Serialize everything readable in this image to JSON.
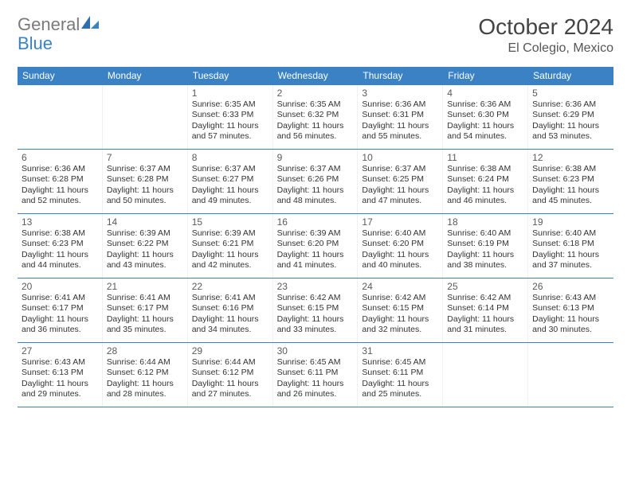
{
  "brand": {
    "part1": "General",
    "part2": "Blue"
  },
  "header": {
    "month_title": "October 2024",
    "location": "El Colegio, Mexico"
  },
  "colors": {
    "header_bg": "#3a82c4",
    "header_text": "#ffffff",
    "page_bg": "#ffffff",
    "text": "#333333",
    "logo_gray": "#7a7a7a",
    "logo_blue": "#3a82c4",
    "week_border": "#3a82c4"
  },
  "day_names": [
    "Sunday",
    "Monday",
    "Tuesday",
    "Wednesday",
    "Thursday",
    "Friday",
    "Saturday"
  ],
  "weeks": [
    [
      null,
      null,
      {
        "n": "1",
        "sr": "6:35 AM",
        "ss": "6:33 PM",
        "dl": "11 hours and 57 minutes."
      },
      {
        "n": "2",
        "sr": "6:35 AM",
        "ss": "6:32 PM",
        "dl": "11 hours and 56 minutes."
      },
      {
        "n": "3",
        "sr": "6:36 AM",
        "ss": "6:31 PM",
        "dl": "11 hours and 55 minutes."
      },
      {
        "n": "4",
        "sr": "6:36 AM",
        "ss": "6:30 PM",
        "dl": "11 hours and 54 minutes."
      },
      {
        "n": "5",
        "sr": "6:36 AM",
        "ss": "6:29 PM",
        "dl": "11 hours and 53 minutes."
      }
    ],
    [
      {
        "n": "6",
        "sr": "6:36 AM",
        "ss": "6:28 PM",
        "dl": "11 hours and 52 minutes."
      },
      {
        "n": "7",
        "sr": "6:37 AM",
        "ss": "6:28 PM",
        "dl": "11 hours and 50 minutes."
      },
      {
        "n": "8",
        "sr": "6:37 AM",
        "ss": "6:27 PM",
        "dl": "11 hours and 49 minutes."
      },
      {
        "n": "9",
        "sr": "6:37 AM",
        "ss": "6:26 PM",
        "dl": "11 hours and 48 minutes."
      },
      {
        "n": "10",
        "sr": "6:37 AM",
        "ss": "6:25 PM",
        "dl": "11 hours and 47 minutes."
      },
      {
        "n": "11",
        "sr": "6:38 AM",
        "ss": "6:24 PM",
        "dl": "11 hours and 46 minutes."
      },
      {
        "n": "12",
        "sr": "6:38 AM",
        "ss": "6:23 PM",
        "dl": "11 hours and 45 minutes."
      }
    ],
    [
      {
        "n": "13",
        "sr": "6:38 AM",
        "ss": "6:23 PM",
        "dl": "11 hours and 44 minutes."
      },
      {
        "n": "14",
        "sr": "6:39 AM",
        "ss": "6:22 PM",
        "dl": "11 hours and 43 minutes."
      },
      {
        "n": "15",
        "sr": "6:39 AM",
        "ss": "6:21 PM",
        "dl": "11 hours and 42 minutes."
      },
      {
        "n": "16",
        "sr": "6:39 AM",
        "ss": "6:20 PM",
        "dl": "11 hours and 41 minutes."
      },
      {
        "n": "17",
        "sr": "6:40 AM",
        "ss": "6:20 PM",
        "dl": "11 hours and 40 minutes."
      },
      {
        "n": "18",
        "sr": "6:40 AM",
        "ss": "6:19 PM",
        "dl": "11 hours and 38 minutes."
      },
      {
        "n": "19",
        "sr": "6:40 AM",
        "ss": "6:18 PM",
        "dl": "11 hours and 37 minutes."
      }
    ],
    [
      {
        "n": "20",
        "sr": "6:41 AM",
        "ss": "6:17 PM",
        "dl": "11 hours and 36 minutes."
      },
      {
        "n": "21",
        "sr": "6:41 AM",
        "ss": "6:17 PM",
        "dl": "11 hours and 35 minutes."
      },
      {
        "n": "22",
        "sr": "6:41 AM",
        "ss": "6:16 PM",
        "dl": "11 hours and 34 minutes."
      },
      {
        "n": "23",
        "sr": "6:42 AM",
        "ss": "6:15 PM",
        "dl": "11 hours and 33 minutes."
      },
      {
        "n": "24",
        "sr": "6:42 AM",
        "ss": "6:15 PM",
        "dl": "11 hours and 32 minutes."
      },
      {
        "n": "25",
        "sr": "6:42 AM",
        "ss": "6:14 PM",
        "dl": "11 hours and 31 minutes."
      },
      {
        "n": "26",
        "sr": "6:43 AM",
        "ss": "6:13 PM",
        "dl": "11 hours and 30 minutes."
      }
    ],
    [
      {
        "n": "27",
        "sr": "6:43 AM",
        "ss": "6:13 PM",
        "dl": "11 hours and 29 minutes."
      },
      {
        "n": "28",
        "sr": "6:44 AM",
        "ss": "6:12 PM",
        "dl": "11 hours and 28 minutes."
      },
      {
        "n": "29",
        "sr": "6:44 AM",
        "ss": "6:12 PM",
        "dl": "11 hours and 27 minutes."
      },
      {
        "n": "30",
        "sr": "6:45 AM",
        "ss": "6:11 PM",
        "dl": "11 hours and 26 minutes."
      },
      {
        "n": "31",
        "sr": "6:45 AM",
        "ss": "6:11 PM",
        "dl": "11 hours and 25 minutes."
      },
      null,
      null
    ]
  ],
  "labels": {
    "sunrise": "Sunrise: ",
    "sunset": "Sunset: ",
    "daylight": "Daylight: "
  }
}
